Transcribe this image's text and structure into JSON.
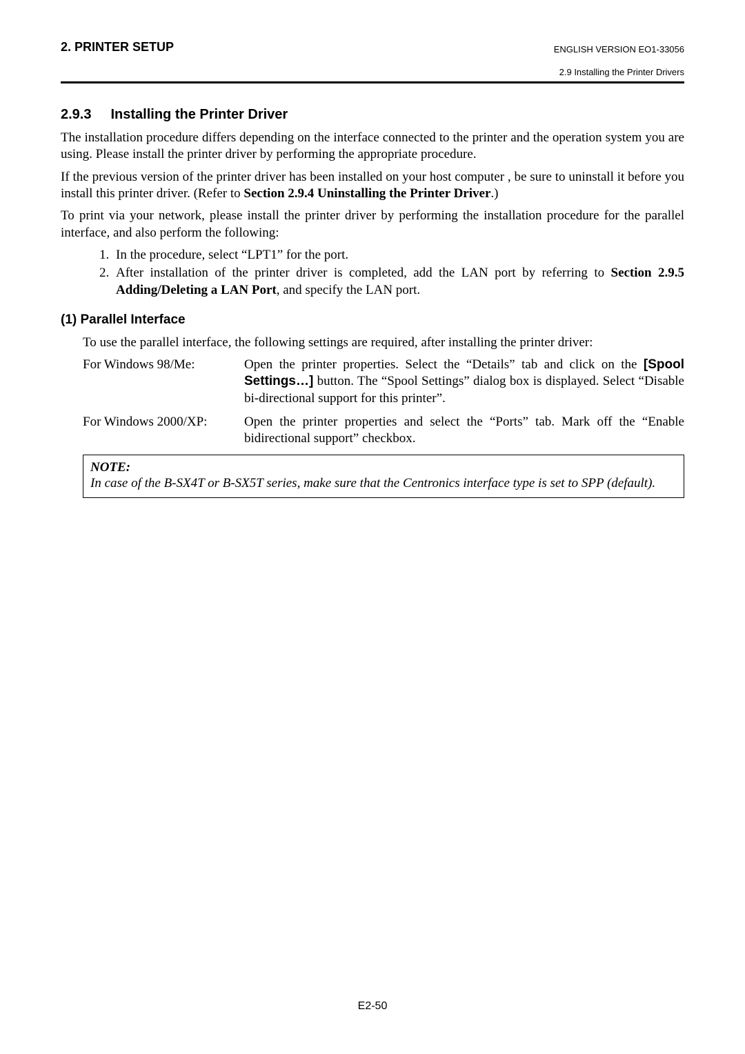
{
  "header": {
    "left": "2. PRINTER SETUP",
    "right": "ENGLISH VERSION EO1-33056",
    "sub": "2.9 Installing the Printer Drivers"
  },
  "section": {
    "number": "2.9.3",
    "title": "Installing the Printer Driver"
  },
  "para1": "The installation procedure differs depending on the interface connected to the printer and the operation system you are using.  Please install the printer driver by performing the appropriate procedure.",
  "para2_a": "If the previous version of the printer driver has been installed on your host computer , be sure to uninstall it before you install this printer driver.  (Refer to ",
  "para2_b": "Section 2.9.4 Uninstalling the Printer Driver",
  "para2_c": ".)",
  "para3": "To print via your network, please install the printer driver by performing the installation procedure for the parallel interface, and also perform the following:",
  "list": {
    "item1": "In the procedure, select “LPT1” for the port.",
    "item2_a": "After installation of the printer driver is completed, add the LAN port by referring to ",
    "item2_b": "Section 2.9.5 Adding/Deleting a LAN Port",
    "item2_c": ", and specify the LAN port."
  },
  "sub1": {
    "heading": "(1)  Parallel Interface",
    "intro": "To use the parallel interface, the following settings are required, after installing the printer driver:",
    "row1_label": "For Windows 98/Me:",
    "row1_desc_a": "Open the printer properties.   Select the “Details” tab and click on the ",
    "row1_desc_b": "[Spool Settings…]",
    "row1_desc_c": " button.  The “Spool Settings” dialog box is displayed.  Select “Disable bi-directional support for this printer”.",
    "row2_label": "For Windows 2000/XP:",
    "row2_desc": "Open the printer properties and select the “Ports” tab.  Mark off the “Enable bidirectional support” checkbox."
  },
  "note": {
    "title": "NOTE:",
    "body": "In case of the B-SX4T or B-SX5T series, make sure that the Centronics interface type is set to SPP (default)."
  },
  "footer": "E2-50"
}
